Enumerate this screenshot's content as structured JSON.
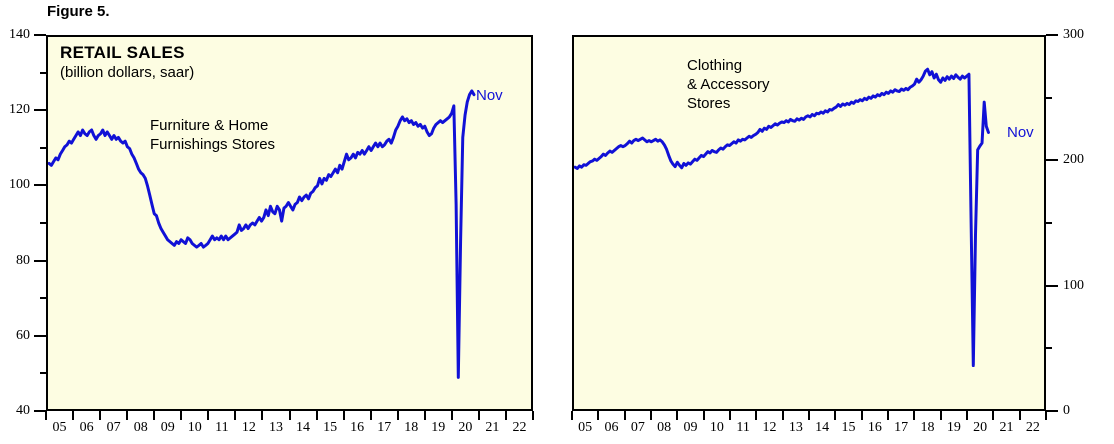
{
  "figure_label": "Figure 5.",
  "colors": {
    "line": "#1111D6",
    "annotation": "#1111D6",
    "plot_bg": "#FDFDE2",
    "axis": "#000000"
  },
  "chart_data": [
    {
      "type": "line",
      "panel": "left",
      "title": "RETAIL SALES",
      "subtitle": "(billion dollars, saar)",
      "series_label": "Furniture & Home\nFurnishings Stores",
      "annotation": "Nov",
      "grid": false,
      "legend_position": "none",
      "x_range": [
        2005,
        2023
      ],
      "x_tick_labels": [
        "05",
        "06",
        "07",
        "08",
        "09",
        "10",
        "11",
        "12",
        "13",
        "14",
        "15",
        "16",
        "17",
        "18",
        "19",
        "20",
        "21",
        "22"
      ],
      "ylim": [
        40,
        140
      ],
      "y_major_ticks": [
        40,
        60,
        80,
        100,
        120,
        140
      ],
      "y_minor_ticks": [
        50,
        70,
        90,
        110,
        130
      ],
      "y_axis_side": "left",
      "last_point": {
        "label": "Nov",
        "year": 2020,
        "month": "November",
        "value": 124.5
      },
      "monthly_values_by_year": {
        "2005": [
          106,
          105.5,
          106.5,
          107.5,
          107,
          108.5,
          109.5,
          110.5,
          111,
          112,
          111.5,
          112.5
        ],
        "2006": [
          113.5,
          114.5,
          113.5,
          115,
          114,
          113.5,
          114.5,
          115,
          113.5,
          112.5,
          113.5,
          114
        ],
        "2007": [
          115,
          113.5,
          114.5,
          113.5,
          112.5,
          113.5,
          112.5,
          113,
          112,
          111.5,
          112,
          110.5
        ],
        "2008": [
          110,
          108.5,
          107.5,
          106,
          104.5,
          103.5,
          103,
          102,
          100,
          97.5,
          95,
          92.5
        ],
        "2009": [
          92,
          90,
          88.5,
          87.5,
          86.5,
          85.5,
          85,
          84.5,
          84,
          85,
          84.5,
          85.5
        ],
        "2010": [
          85,
          84.5,
          86,
          85.5,
          84.5,
          84,
          83.5,
          84,
          84.5,
          83.5,
          84,
          84.5
        ],
        "2011": [
          85.5,
          86.5,
          85.5,
          86,
          85.5,
          86.5,
          85.5,
          86.5,
          85.5,
          86,
          86.5,
          87
        ],
        "2012": [
          87.5,
          89.5,
          88,
          88.5,
          89.5,
          88.5,
          89.5,
          90,
          89.5,
          90.5,
          91.5,
          90.5
        ],
        "2013": [
          91.5,
          93.5,
          92,
          94.5,
          93,
          92.5,
          94.5,
          93.5,
          90.5,
          94,
          94.5,
          95.5
        ],
        "2014": [
          94.5,
          93.5,
          95,
          95.5,
          97,
          96,
          97,
          97.5,
          96.5,
          98,
          98.5,
          99.5
        ],
        "2015": [
          100,
          102,
          100.5,
          102,
          101.5,
          103,
          102.5,
          103.5,
          104.5,
          103.5,
          105.5,
          104.5
        ],
        "2016": [
          106.5,
          108.5,
          107,
          107.5,
          108.5,
          107.5,
          109,
          108.5,
          109.5,
          108.5,
          109.5,
          110.5
        ],
        "2017": [
          109.5,
          110.5,
          111.5,
          110.5,
          111.5,
          110.5,
          111,
          112,
          112.5,
          111.5,
          113,
          115
        ],
        "2018": [
          116,
          117.5,
          118.5,
          117.5,
          118,
          117,
          117.5,
          116.5,
          117,
          116,
          116.5,
          115.5
        ],
        "2019": [
          116,
          114.5,
          113.5,
          114,
          115.5,
          116.5,
          117,
          117.5,
          117,
          117.5,
          118,
          118.5
        ],
        "2020": [
          119.5,
          121.5,
          95,
          48.5,
          85,
          113,
          119,
          122.5,
          124.5,
          125.5,
          124.5
        ]
      }
    },
    {
      "type": "line",
      "panel": "right",
      "title": "RETAIL SALES",
      "subtitle": "(billion dollars, saar)",
      "series_label": "Clothing\n& Accessory\nStores",
      "annotation": "Nov",
      "grid": false,
      "legend_position": "none",
      "x_range": [
        2005,
        2023
      ],
      "x_tick_labels": [
        "05",
        "06",
        "07",
        "08",
        "09",
        "10",
        "11",
        "12",
        "13",
        "14",
        "15",
        "16",
        "17",
        "18",
        "19",
        "20",
        "21",
        "22"
      ],
      "ylim": [
        0,
        300
      ],
      "y_major_ticks": [
        0,
        100,
        200,
        300
      ],
      "y_minor_ticks": [
        50,
        150,
        250
      ],
      "y_axis_side": "right",
      "last_point": {
        "label": "Nov",
        "year": 2020,
        "month": "November",
        "value": 223
      },
      "monthly_values_by_year": {
        "2005": [
          195,
          194,
          196,
          195,
          197,
          196.5,
          198,
          199.5,
          200,
          201.5,
          200.5,
          202
        ],
        "2006": [
          203.5,
          205.5,
          204.5,
          206.5,
          208,
          207,
          208.5,
          210,
          211.5,
          212.5,
          211.5,
          212.5
        ],
        "2007": [
          214,
          216,
          214.5,
          216.5,
          217.5,
          216.5,
          217.5,
          218.5,
          217,
          215.5,
          216.5,
          215.5
        ],
        "2008": [
          216.5,
          217.5,
          216,
          217,
          215.5,
          213,
          209.5,
          204.5,
          200,
          197.5,
          195.5,
          199
        ],
        "2009": [
          196.5,
          194.5,
          198,
          196.5,
          198.5,
          197.5,
          199.5,
          201.5,
          200.5,
          202.5,
          204.5,
          203.5
        ],
        "2010": [
          205.5,
          207.5,
          206.5,
          208.5,
          207.5,
          207,
          209,
          210.5,
          209.5,
          211.5,
          213,
          212.5
        ],
        "2011": [
          214,
          215.5,
          214.5,
          217,
          216,
          217.5,
          217,
          218.5,
          220,
          219,
          220.5,
          221.5
        ],
        "2012": [
          223,
          225.5,
          224,
          226.5,
          225.5,
          228,
          227,
          228.5,
          230,
          229,
          230.5,
          231.5
        ],
        "2013": [
          231,
          232.5,
          231.5,
          233.5,
          232.5,
          232,
          234,
          233,
          234.5,
          233.5,
          235.5,
          236.5
        ],
        "2014": [
          235.5,
          237.5,
          236.5,
          238.5,
          238,
          239.5,
          238.5,
          240.5,
          239.5,
          241.5,
          241,
          242.5
        ],
        "2015": [
          243.5,
          245.5,
          244,
          246,
          245,
          246.5,
          245.5,
          247.5,
          246.5,
          248.5,
          248,
          249.5
        ],
        "2016": [
          248.5,
          250.5,
          249.5,
          251.5,
          250.5,
          252.5,
          251.5,
          253.5,
          252.5,
          254.5,
          253.5,
          255.5
        ],
        "2017": [
          254.5,
          256.5,
          255.5,
          257.5,
          256.5,
          256,
          258,
          257,
          258.5,
          257.5,
          259.5,
          260.5
        ],
        "2018": [
          262,
          266,
          263.5,
          265.5,
          268.5,
          272.5,
          274,
          269.5,
          272,
          267,
          270,
          265.5
        ],
        "2019": [
          263.5,
          267,
          265,
          268,
          266,
          268.5,
          266.5,
          269.5,
          267.5,
          266,
          268.5,
          267
        ],
        "2020": [
          268.5,
          270,
          150,
          35,
          140,
          209,
          212,
          214.5,
          247.5,
          228,
          223
        ]
      }
    }
  ]
}
